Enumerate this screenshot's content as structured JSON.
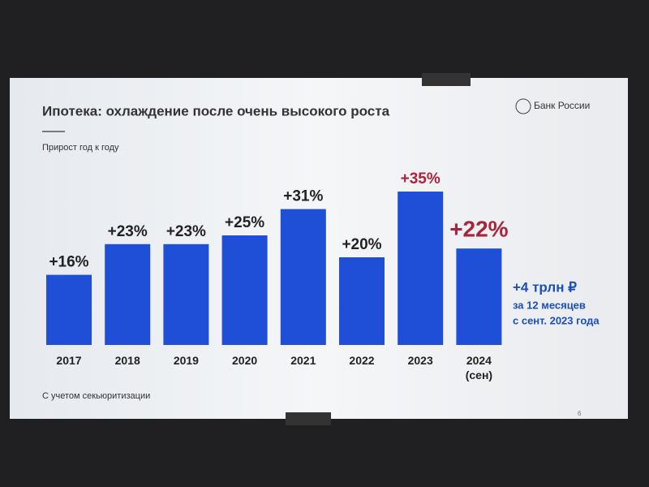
{
  "chart_data": {
    "type": "bar",
    "title": "Ипотека: охлаждение после очень высокого роста",
    "subtitle": "Прирост год к году",
    "logo": "Банк России",
    "categories": [
      "2017",
      "2018",
      "2019",
      "2020",
      "2021",
      "2022",
      "2023",
      "2024 (сен)"
    ],
    "values": [
      16,
      23,
      23,
      25,
      31,
      20,
      35,
      22
    ],
    "value_labels": [
      "+16%",
      "+23%",
      "+23%",
      "+25%",
      "+31%",
      "+20%",
      "+35%",
      "+22%"
    ],
    "color": "#1f4fd6",
    "label_color": "#222222",
    "highlight_color": "#a8243c",
    "highlight": [
      false,
      false,
      false,
      false,
      false,
      false,
      true,
      true
    ],
    "annotation": [
      "+4 трлн ₽",
      "за 12 месяцев",
      "с сент. 2023 года"
    ],
    "annotation_color": "#1a4fb8",
    "footnote": "С учетом секьюритизации",
    "page_number": "6"
  }
}
